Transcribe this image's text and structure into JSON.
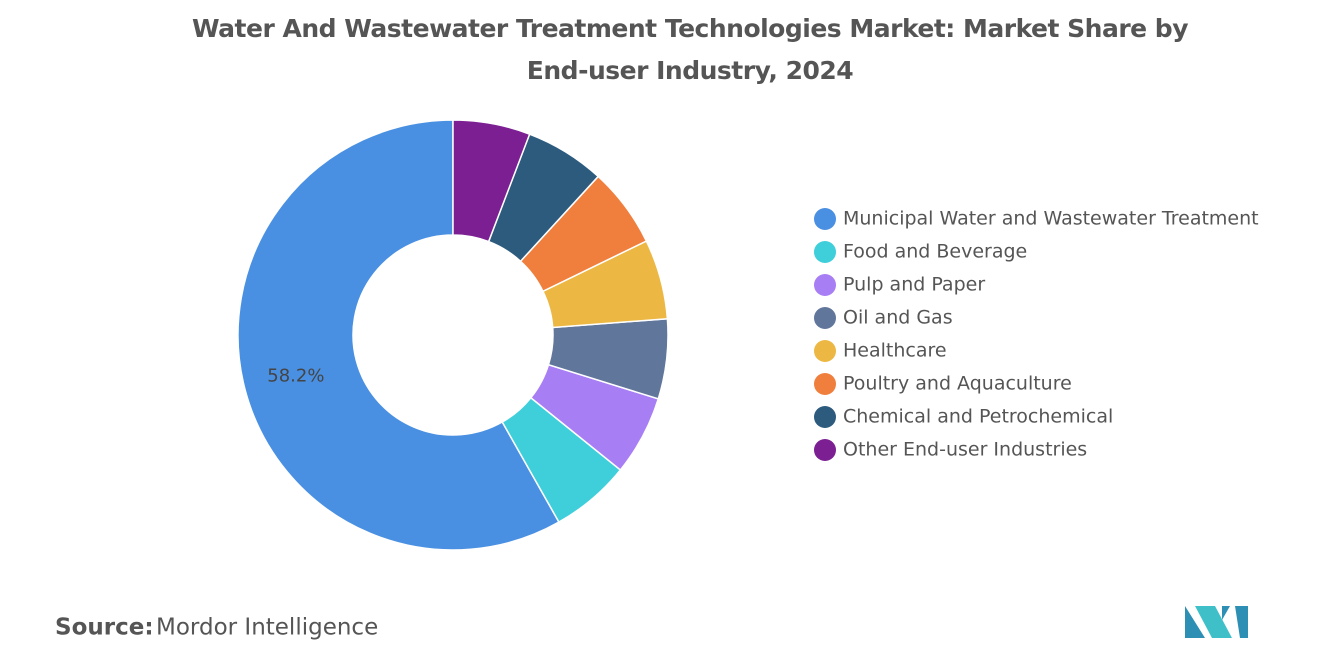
{
  "chart_data": {
    "type": "donut",
    "title": "Water And Wastewater Treatment Technologies Market: Market Share by End-user Industry, 2024",
    "categories": [
      "Municipal Water and Wastewater Treatment",
      "Food and Beverage",
      "Pulp and Paper",
      "Oil and Gas",
      "Healthcare",
      "Poultry and Aquaculture",
      "Chemical and Petrochemical",
      "Other End-user Industries"
    ],
    "values": [
      58.2,
      6.0,
      6.0,
      6.0,
      6.0,
      6.0,
      6.0,
      5.8
    ],
    "value_labels": [
      "58.2%",
      null,
      null,
      null,
      null,
      null,
      null,
      null
    ],
    "colors": [
      "#4a90e2",
      "#3fcfdb",
      "#a87ef5",
      "#60769a",
      "#ecb843",
      "#f07f3d",
      "#2c5b7e",
      "#7b1f93"
    ],
    "legend": "right"
  },
  "source": {
    "label": "Source:",
    "text": "Mordor Intelligence"
  }
}
